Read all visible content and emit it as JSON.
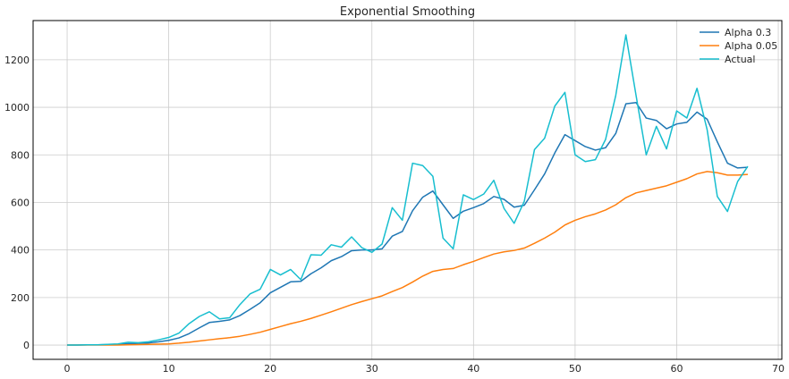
{
  "chart_data": {
    "type": "line",
    "title": "Exponential Smoothing",
    "xlabel": "",
    "ylabel": "",
    "xlim": [
      -3.35,
      70.35
    ],
    "ylim": [
      -60,
      1365
    ],
    "xticks": [
      0,
      10,
      20,
      30,
      40,
      50,
      60,
      70
    ],
    "yticks": [
      0,
      200,
      400,
      600,
      800,
      1000,
      1200
    ],
    "grid": true,
    "legend_position": "top-right",
    "x": [
      0,
      1,
      2,
      3,
      4,
      5,
      6,
      7,
      8,
      9,
      10,
      11,
      12,
      13,
      14,
      15,
      16,
      17,
      18,
      19,
      20,
      21,
      22,
      23,
      24,
      25,
      26,
      27,
      28,
      29,
      30,
      31,
      32,
      33,
      34,
      35,
      36,
      37,
      38,
      39,
      40,
      41,
      42,
      43,
      44,
      45,
      46,
      47,
      48,
      49,
      50,
      51,
      52,
      53,
      54,
      55,
      56,
      57,
      58,
      59,
      60,
      61,
      62,
      63,
      64,
      65,
      66,
      67
    ],
    "series": [
      {
        "name": "Alpha 0.3",
        "color": "#1f77b4",
        "values": [
          0,
          0,
          1,
          1,
          2,
          3,
          6,
          7,
          9,
          14,
          20,
          30,
          48,
          72,
          95,
          100,
          106,
          124,
          150,
          178,
          220,
          243,
          266,
          268,
          300,
          325,
          355,
          372,
          397,
          400,
          400,
          405,
          458,
          478,
          565,
          622,
          648,
          590,
          533,
          563,
          578,
          595,
          625,
          613,
          580,
          588,
          653,
          720,
          808,
          885,
          860,
          835,
          820,
          830,
          890,
          1015,
          1020,
          955,
          945,
          910,
          930,
          937,
          980,
          950,
          855,
          765,
          745,
          748
        ]
      },
      {
        "name": "Alpha 0.05",
        "color": "#ff7f0e",
        "values": [
          0,
          0,
          0,
          0,
          0,
          0,
          1,
          2,
          3,
          4,
          5,
          8,
          12,
          17,
          22,
          27,
          31,
          37,
          45,
          54,
          66,
          78,
          90,
          100,
          112,
          126,
          140,
          155,
          170,
          183,
          195,
          207,
          225,
          242,
          265,
          290,
          310,
          318,
          322,
          338,
          352,
          368,
          383,
          392,
          398,
          408,
          428,
          450,
          475,
          505,
          525,
          540,
          552,
          568,
          590,
          620,
          640,
          650,
          660,
          670,
          685,
          700,
          720,
          730,
          725,
          715,
          715,
          718
        ]
      },
      {
        "name": "Actual",
        "color": "#17becf",
        "values": [
          0,
          0,
          1,
          1,
          3,
          5,
          12,
          10,
          14,
          22,
          32,
          50,
          90,
          120,
          140,
          110,
          115,
          170,
          215,
          235,
          318,
          295,
          318,
          275,
          380,
          378,
          422,
          412,
          455,
          410,
          390,
          425,
          578,
          525,
          765,
          755,
          710,
          450,
          405,
          632,
          612,
          635,
          693,
          575,
          512,
          605,
          822,
          870,
          1005,
          1063,
          800,
          772,
          780,
          865,
          1050,
          1305,
          1050,
          800,
          920,
          825,
          985,
          955,
          1080,
          905,
          625,
          562,
          688,
          752
        ]
      }
    ]
  }
}
